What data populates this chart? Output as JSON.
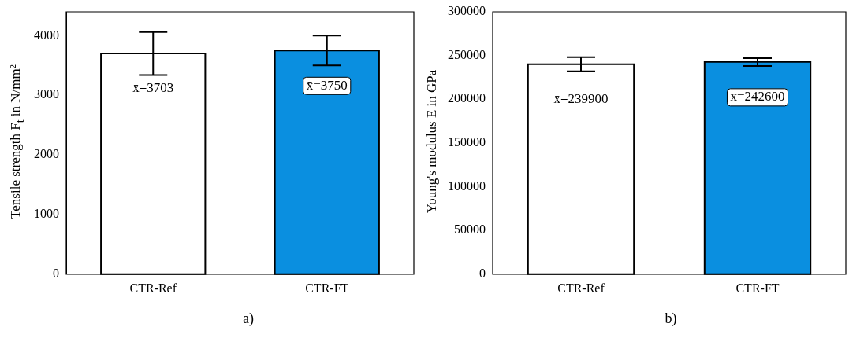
{
  "chart_data": [
    {
      "type": "bar",
      "ylabel": "Tensile strength F$_{t}$ in N/mm²",
      "categories": [
        "CTR-Ref",
        "CTR-FT"
      ],
      "values": [
        3703,
        3750
      ],
      "colors": [
        "#ffffff",
        "#0a8fe0"
      ],
      "errors": [
        [
          3340,
          4060
        ],
        [
          3500,
          4000
        ]
      ],
      "ylim": [
        0,
        4400
      ],
      "yticks": [
        0,
        1000,
        2000,
        3000,
        4000
      ],
      "grid": false,
      "legend": false,
      "value_labels": [
        "x̄=3703",
        "x̄=3750"
      ],
      "annotations": [
        "a)"
      ]
    },
    {
      "type": "bar",
      "ylabel": "Young's modulus E in GPa",
      "categories": [
        "CTR-Ref",
        "CTR-FT"
      ],
      "values": [
        239900,
        242600
      ],
      "colors": [
        "#ffffff",
        "#0a8fe0"
      ],
      "errors": [
        [
          232000,
          248000
        ],
        [
          238000,
          247000
        ]
      ],
      "ylim": [
        0,
        300000
      ],
      "yticks": [
        0,
        50000,
        100000,
        150000,
        200000,
        250000,
        300000
      ],
      "grid": false,
      "legend": false,
      "value_labels": [
        "x̄=239900",
        "x̄=242600"
      ],
      "annotations": [
        "b)"
      ]
    }
  ]
}
